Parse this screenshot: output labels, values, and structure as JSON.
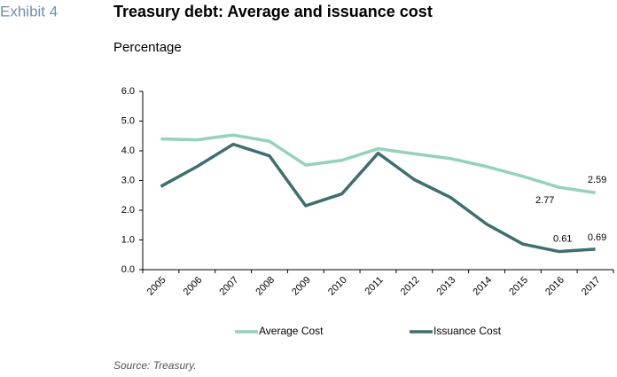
{
  "chart_data": {
    "type": "line",
    "exhibit": "Exhibit 4",
    "title": "Treasury debt: Average and issuance cost",
    "subtitle": "Percentage",
    "source": "Source: Treasury.",
    "categories": [
      "2005",
      "2006",
      "2007",
      "2008",
      "2009",
      "2010",
      "2011",
      "2012",
      "2013",
      "2014",
      "2015",
      "2016",
      "2017"
    ],
    "series": [
      {
        "name": "Average Cost",
        "color": "#94d2b9",
        "values": [
          4.4,
          4.37,
          4.53,
          4.32,
          3.52,
          3.68,
          4.07,
          3.9,
          3.74,
          3.47,
          3.14,
          2.77,
          2.59
        ],
        "value_labels": [
          null,
          null,
          null,
          null,
          null,
          null,
          null,
          null,
          null,
          null,
          null,
          "2.77",
          "2.59"
        ]
      },
      {
        "name": "Issuance Cost",
        "color": "#3e6f6e",
        "values": [
          2.8,
          3.47,
          4.22,
          3.83,
          2.15,
          2.55,
          3.92,
          3.03,
          2.43,
          1.53,
          0.86,
          0.61,
          0.69
        ],
        "value_labels": [
          null,
          null,
          null,
          null,
          null,
          null,
          null,
          null,
          null,
          null,
          null,
          "0.61",
          "0.69"
        ]
      }
    ],
    "ylim": [
      0,
      6
    ],
    "yticks": [
      {
        "value": 0,
        "label": "0.0"
      },
      {
        "value": 1,
        "label": "1.0"
      },
      {
        "value": 2,
        "label": "2.0"
      },
      {
        "value": 3,
        "label": "3.0"
      },
      {
        "value": 4,
        "label": "4.0"
      },
      {
        "value": 5,
        "label": "5.0"
      },
      {
        "value": 6,
        "label": "6.0"
      }
    ],
    "grid": false,
    "legend": "bottom"
  }
}
